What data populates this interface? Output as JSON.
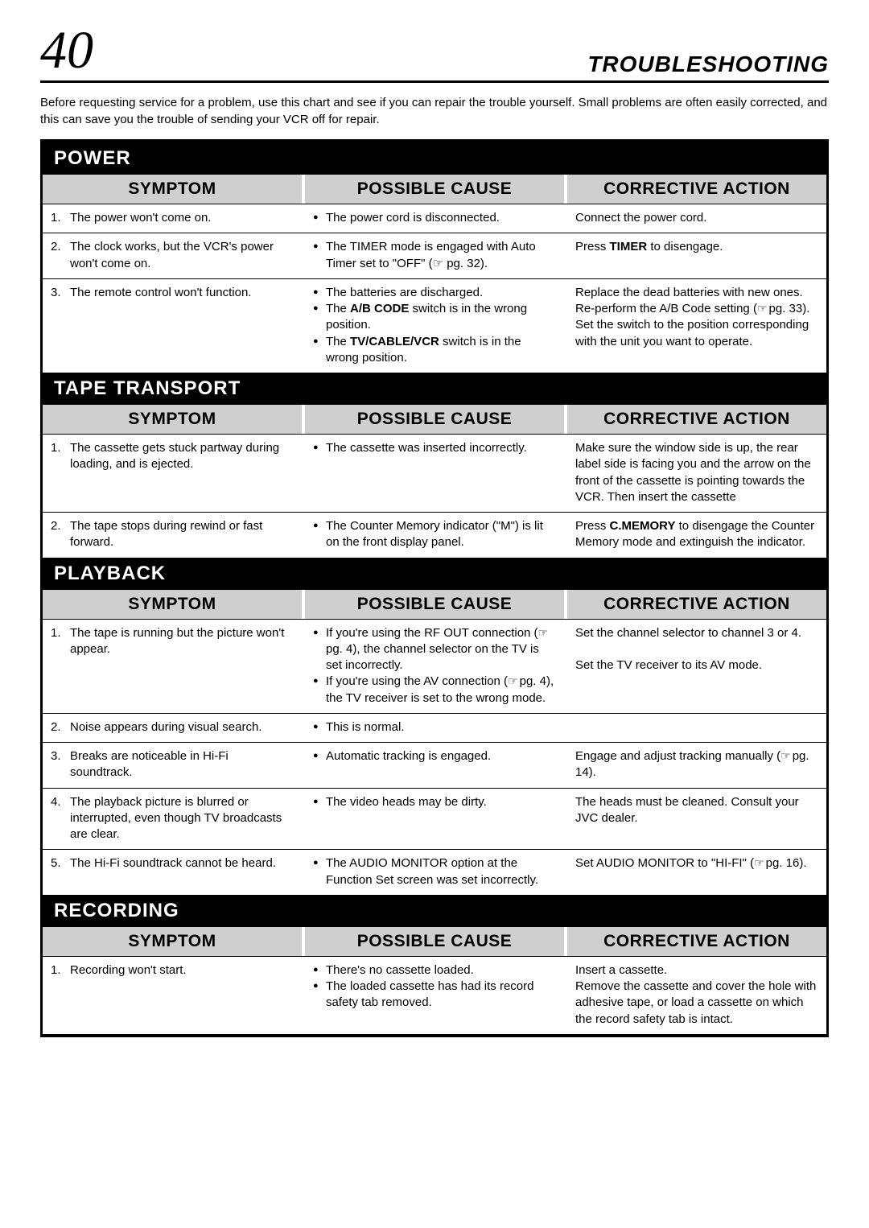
{
  "page_number": "40",
  "page_title": "TROUBLESHOOTING",
  "intro": "Before requesting service for a problem, use this chart and see if you can repair the trouble yourself. Small problems are often easily corrected, and this can save you the trouble of sending your VCR off for repair.",
  "col_labels": {
    "symptom": "SYMPTOM",
    "cause": "POSSIBLE CAUSE",
    "action": "CORRECTIVE ACTION"
  },
  "sections": {
    "power": {
      "title": "POWER",
      "rows": [
        {
          "n": "1.",
          "symptom": "The power won't come on.",
          "causes": [
            "The power cord is disconnected."
          ],
          "action": "Connect the power cord."
        },
        {
          "n": "2.",
          "symptom": "The clock works, but the VCR's power won't come on.",
          "causes": [
            "The TIMER mode is engaged with Auto Timer set to \"OFF\" (☞ pg. 32)."
          ],
          "action_html": "Press <b>TIMER</b> to disengage."
        },
        {
          "n": "3.",
          "symptom": "The remote control won't function.",
          "causes": [
            "The batteries are discharged.",
            "The <b>A/B CODE</b> switch is in the wrong position.",
            "The <b>TV/CABLE/VCR</b> switch is in the wrong position."
          ],
          "action_html": "Replace the dead batteries with new ones.<br>Re-perform the A/B Code setting (<span class=\"ref\"></span>pg. 33).<br>Set the switch to the position corresponding with the unit you want to operate."
        }
      ]
    },
    "tape": {
      "title": "TAPE TRANSPORT",
      "rows": [
        {
          "n": "1.",
          "symptom": "The cassette gets stuck partway during loading, and is ejected.",
          "causes": [
            "The cassette was inserted incorrectly."
          ],
          "action": "Make sure the window side is up, the rear label side is facing you and the arrow on the front of the cassette is pointing towards the VCR. Then insert the cassette"
        },
        {
          "n": "2.",
          "symptom": "The tape stops during rewind or fast forward.",
          "causes": [
            "The Counter Memory indicator (\"M\") is lit on the front display panel."
          ],
          "action_html": "Press <b>C.MEMORY</b> to disengage the Counter Memory mode and extinguish the indicator."
        }
      ]
    },
    "playback": {
      "title": "PLAYBACK",
      "rows": [
        {
          "n": "1.",
          "symptom": "The tape is running but the picture won't appear.",
          "causes": [
            "If you're using the RF OUT connection (<span class=\"ref\"></span>pg. 4), the channel selector on the TV is set incorrectly.",
            "If you're using the AV connection (<span class=\"ref\"></span>pg. 4), the TV receiver is set to the wrong mode."
          ],
          "action_html": "Set the channel selector to channel 3 or 4.<br><br>Set the TV receiver to its AV mode."
        },
        {
          "n": "2.",
          "symptom": "Noise appears during visual search.",
          "causes": [
            "This is normal."
          ],
          "action": ""
        },
        {
          "n": "3.",
          "symptom": "Breaks are noticeable in Hi-Fi soundtrack.",
          "causes": [
            "Automatic tracking is engaged."
          ],
          "action_html": "Engage and adjust tracking manually (<span class=\"ref\"></span>pg. 14)."
        },
        {
          "n": "4.",
          "symptom": "The playback picture is blurred or interrupted, even though TV broadcasts are clear.",
          "causes": [
            "The video heads may be dirty."
          ],
          "action": "The heads must be cleaned. Consult your JVC dealer."
        },
        {
          "n": "5.",
          "symptom": "The Hi-Fi soundtrack cannot be heard.",
          "causes": [
            "The AUDIO MONITOR option at the Function Set screen was set incorrectly."
          ],
          "action_html": "Set AUDIO MONITOR to \"HI-FI\" (<span class=\"ref\"></span>pg. 16)."
        }
      ]
    },
    "recording": {
      "title": "RECORDING",
      "rows": [
        {
          "n": "1.",
          "symptom": "Recording won't start.",
          "causes": [
            "There's no cassette loaded.",
            "The loaded cassette has had its record safety tab removed."
          ],
          "action_html": "Insert a cassette.<br>Remove the cassette and cover the hole with adhesive tape, or load a cassette on which the record safety tab is intact."
        }
      ]
    }
  }
}
